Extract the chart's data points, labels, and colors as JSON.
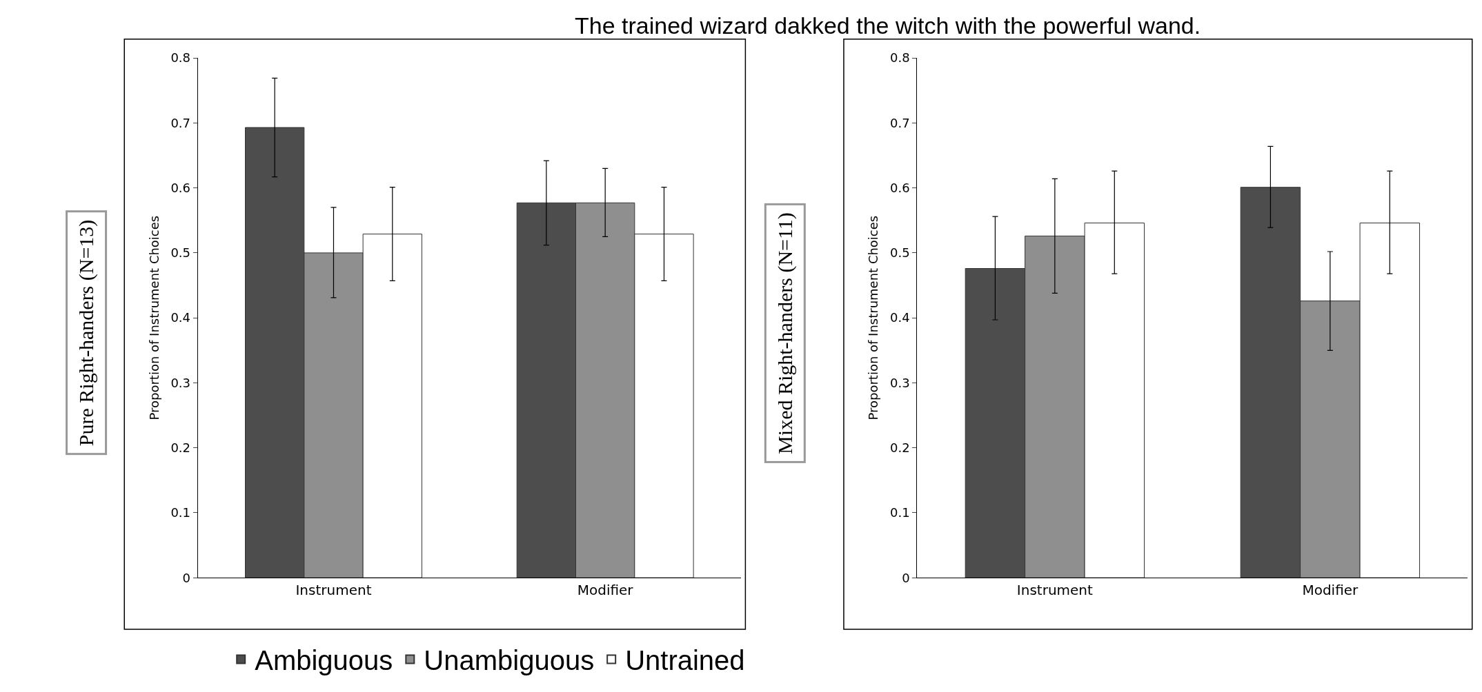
{
  "chart_data": [
    {
      "type": "bar",
      "title": "The trained wizard dakked the witch with the powerful wand.",
      "ylabel": "Proportion of Instrument Choices",
      "annotations": [
        "Pure Right-handers (N=13)"
      ],
      "categories": [
        "Instrument",
        "Modifier"
      ],
      "ylim": [
        0,
        0.8
      ],
      "yticks": [
        0,
        0.1,
        0.2,
        0.3,
        0.4,
        0.5,
        0.6,
        0.7,
        0.8
      ],
      "legend": "bottom",
      "series": [
        {
          "name": "Ambiguous",
          "color": "#4d4d4d",
          "values": [
            0.693,
            0.577
          ],
          "errors": [
            [
              0.617,
              0.769
            ],
            [
              0.512,
              0.642
            ]
          ]
        },
        {
          "name": "Unambiguous",
          "color": "#8f8f8f",
          "values": [
            0.5,
            0.577
          ],
          "errors": [
            [
              0.431,
              0.57
            ],
            [
              0.525,
              0.63
            ]
          ]
        },
        {
          "name": "Untrained",
          "color": "#ffffff",
          "values": [
            0.529,
            0.529
          ],
          "errors": [
            [
              0.457,
              0.601
            ],
            [
              0.457,
              0.601
            ]
          ]
        }
      ]
    },
    {
      "type": "bar",
      "ylabel": "Proportion of Instrument Choices",
      "annotations": [
        "Mixed Right-handers (N=11)"
      ],
      "categories": [
        "Instrument",
        "Modifier"
      ],
      "ylim": [
        0,
        0.8
      ],
      "yticks": [
        0,
        0.1,
        0.2,
        0.3,
        0.4,
        0.5,
        0.6,
        0.7,
        0.8
      ],
      "series": [
        {
          "color": "#4d4d4d",
          "values": [
            0.476,
            0.601
          ],
          "errors": [
            [
              0.397,
              0.556
            ],
            [
              0.539,
              0.664
            ]
          ]
        },
        {
          "color": "#8f8f8f",
          "values": [
            0.526,
            0.426
          ],
          "errors": [
            [
              0.438,
              0.614
            ],
            [
              0.35,
              0.502
            ]
          ]
        },
        {
          "color": "#ffffff",
          "values": [
            0.546,
            0.546
          ],
          "errors": [
            [
              0.468,
              0.626
            ],
            [
              0.468,
              0.626
            ]
          ]
        }
      ]
    }
  ]
}
